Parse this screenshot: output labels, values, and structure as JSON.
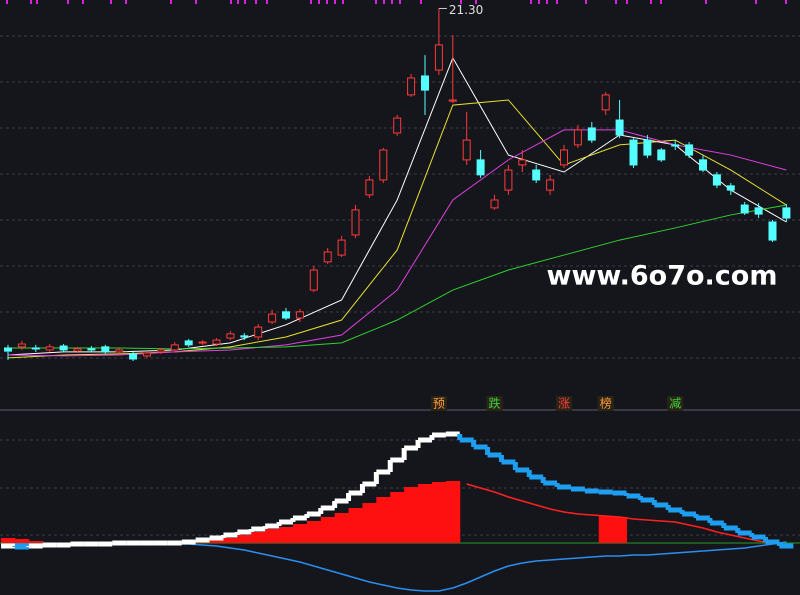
{
  "chart_data": [
    {
      "type": "candlestick",
      "ylim": [
        8.5,
        21.6
      ],
      "up_color": "#ff3a3a",
      "down_color": "#54ffff",
      "open": [
        9.28,
        9.32,
        9.28,
        9.21,
        9.35,
        9.17,
        9.25,
        9.32,
        9.14,
        9.07,
        9.0,
        9.14,
        9.21,
        9.53,
        9.46,
        9.42,
        9.63,
        9.71,
        9.67,
        10.2,
        10.56,
        10.34,
        11.33,
        12.33,
        12.57,
        13.28,
        14.7,
        15.23,
        16.89,
        18.24,
        18.91,
        19.12,
        18.02,
        15.94,
        15.94,
        14.24,
        14.87,
        15.76,
        15.58,
        14.87,
        15.76,
        16.47,
        17.07,
        17.71,
        17.35,
        16.64,
        16.64,
        16.29,
        16.47,
        16.47,
        15.94,
        15.41,
        15.02,
        14.34,
        14.24,
        13.74,
        14.24
      ],
      "close": [
        9.17,
        9.42,
        9.25,
        9.32,
        9.21,
        9.25,
        9.21,
        9.14,
        9.21,
        8.89,
        9.1,
        9.21,
        9.39,
        9.39,
        9.49,
        9.56,
        9.78,
        9.67,
        10.02,
        10.48,
        10.34,
        10.56,
        12.04,
        12.68,
        13.1,
        14.17,
        15.23,
        16.29,
        17.42,
        18.84,
        18.41,
        20.01,
        18.06,
        16.64,
        15.41,
        14.52,
        15.58,
        15.94,
        15.23,
        15.23,
        16.29,
        17.0,
        16.64,
        18.24,
        16.82,
        15.76,
        16.11,
        15.94,
        16.43,
        16.11,
        15.58,
        15.05,
        14.87,
        14.06,
        14.02,
        13.1,
        13.88
      ],
      "high": [
        9.39,
        9.53,
        9.39,
        9.42,
        9.42,
        9.32,
        9.35,
        9.39,
        9.28,
        9.14,
        9.17,
        9.28,
        9.49,
        9.6,
        9.56,
        9.63,
        9.88,
        9.81,
        10.13,
        10.63,
        10.7,
        10.66,
        12.18,
        12.82,
        13.25,
        14.34,
        15.37,
        16.36,
        17.53,
        18.98,
        19.65,
        21.3,
        20.36,
        17.64,
        16.29,
        14.7,
        15.76,
        16.29,
        15.76,
        15.41,
        16.47,
        17.18,
        17.28,
        18.34,
        18.06,
        16.71,
        16.82,
        16.36,
        16.64,
        16.57,
        16.11,
        15.51,
        15.12,
        14.45,
        14.41,
        13.81,
        14.38
      ],
      "low": [
        8.86,
        9.21,
        9.14,
        9.14,
        9.14,
        9.1,
        9.14,
        9.07,
        9.07,
        8.82,
        8.93,
        9.07,
        9.14,
        9.32,
        9.39,
        9.35,
        9.56,
        9.56,
        9.56,
        10.13,
        10.27,
        10.2,
        11.26,
        12.25,
        12.5,
        13.17,
        14.59,
        15.12,
        16.79,
        18.17,
        17.53,
        18.95,
        17.95,
        15.76,
        15.3,
        14.17,
        14.7,
        15.51,
        15.12,
        14.7,
        15.65,
        16.36,
        16.54,
        17.53,
        16.71,
        15.65,
        16.0,
        15.87,
        16.29,
        16.01,
        15.51,
        14.94,
        14.7,
        13.99,
        13.88,
        13.03,
        13.74
      ],
      "ma": [
        {
          "color": "#ffffff",
          "x": [
            0,
            4,
            8,
            12,
            16,
            20,
            24,
            28,
            32,
            36,
            40,
            44,
            48,
            52,
            56
          ],
          "values": [
            9.03,
            9.14,
            9.14,
            9.21,
            9.46,
            10.1,
            10.98,
            14.52,
            19.55,
            16.11,
            15.51,
            16.82,
            16.47,
            14.87,
            13.74
          ]
        },
        {
          "color": "#e8e030",
          "x": [
            0,
            4,
            8,
            12,
            16,
            20,
            24,
            28,
            32,
            36,
            40,
            44,
            48,
            52,
            56
          ],
          "values": [
            8.93,
            9.03,
            9.07,
            9.14,
            9.32,
            9.67,
            10.27,
            12.75,
            17.88,
            18.06,
            15.76,
            16.47,
            16.64,
            15.58,
            14.34
          ]
        },
        {
          "color": "#e040e0",
          "x": [
            0,
            4,
            8,
            12,
            16,
            20,
            24,
            28,
            32,
            36,
            40,
            44,
            48,
            52,
            56
          ],
          "values": [
            9.03,
            9.0,
            9.03,
            9.14,
            9.21,
            9.39,
            9.74,
            11.33,
            14.52,
            15.94,
            17.0,
            17.0,
            16.47,
            16.11,
            15.58
          ]
        },
        {
          "color": "#30d030",
          "x": [
            0,
            4,
            8,
            12,
            16,
            20,
            24,
            28,
            32,
            36,
            40,
            44,
            48,
            52,
            56
          ],
          "values": [
            9.28,
            9.28,
            9.28,
            9.25,
            9.28,
            9.32,
            9.46,
            10.27,
            11.33,
            12.04,
            12.57,
            13.1,
            13.53,
            13.99,
            14.34
          ]
        }
      ],
      "high_label": "21.30",
      "watermark": "www.6o7o.com",
      "signals": [
        null,
        null,
        null,
        null,
        null,
        null,
        null,
        null,
        null,
        null,
        null,
        null,
        null,
        null,
        null,
        null,
        null,
        null,
        null,
        null,
        null,
        null,
        null,
        null,
        null,
        null,
        null,
        null,
        null,
        null,
        null,
        {
          "text": "预",
          "color": "#ff9a3a"
        },
        null,
        null,
        null,
        {
          "text": "跌",
          "color": "#3ad23a"
        },
        null,
        null,
        null,
        null,
        {
          "text": "涨",
          "color": "#ff3a3a"
        },
        null,
        null,
        {
          "text": "榜",
          "color": "#ff9a3a"
        },
        null,
        null,
        null,
        null,
        {
          "text": "减",
          "color": "#3ad23a"
        },
        null,
        null,
        null,
        null,
        null,
        null,
        null,
        null
      ]
    },
    {
      "type": "indicator",
      "ylim": [
        -52,
        128
      ],
      "stair": {
        "up_color": "#ffffff",
        "down_color": "#1e9ef0",
        "values": [
          -3,
          -4,
          -3,
          -2,
          -2,
          -1,
          -1,
          -1,
          0,
          0,
          0,
          0,
          0,
          1,
          3,
          5,
          8,
          11,
          14,
          17,
          21,
          25,
          29,
          35,
          42,
          50,
          59,
          71,
          83,
          95,
          103,
          108,
          109,
          103,
          96,
          88,
          81,
          73,
          66,
          60,
          56,
          54,
          52,
          51,
          50,
          47,
          43,
          38,
          33,
          29,
          25,
          20,
          15,
          10,
          6,
          1,
          -3
        ]
      },
      "hist": {
        "color": "#ff1010",
        "values": [
          5,
          4,
          2,
          null,
          null,
          null,
          null,
          null,
          null,
          null,
          null,
          null,
          null,
          null,
          2,
          3,
          5,
          8,
          11,
          14,
          16,
          19,
          22,
          26,
          30,
          35,
          40,
          46,
          51,
          56,
          59,
          61,
          62,
          null,
          null,
          null,
          null,
          null,
          null,
          null,
          null,
          null,
          null,
          27,
          26,
          null,
          null,
          null,
          null,
          null,
          null,
          null,
          null,
          null,
          null,
          null,
          null
        ]
      },
      "line": {
        "color": "#ff2020",
        "values": [
          null,
          null,
          null,
          null,
          null,
          null,
          null,
          null,
          null,
          null,
          null,
          null,
          null,
          null,
          null,
          null,
          null,
          null,
          null,
          null,
          null,
          null,
          null,
          null,
          null,
          null,
          null,
          null,
          null,
          null,
          null,
          null,
          null,
          59,
          55,
          51,
          46,
          42,
          38,
          34,
          31,
          29,
          28,
          27,
          26,
          24,
          23,
          22,
          21,
          18,
          15,
          11,
          8,
          5,
          2,
          0,
          -2
        ]
      },
      "signal_line": {
        "color": "#2a8ef0",
        "values": [
          -1,
          -1,
          -1,
          -1,
          -1,
          -1,
          -1,
          -1,
          -1,
          -1,
          -1,
          -1,
          -1,
          -1,
          -2,
          -3,
          -5,
          -7,
          -10,
          -13,
          -16,
          -19,
          -23,
          -27,
          -31,
          -35,
          -39,
          -42,
          -45,
          -47,
          -48,
          -48,
          -45,
          -40,
          -34,
          -28,
          -23,
          -20,
          -18,
          -17,
          -16,
          -15,
          -14,
          -13,
          -13,
          -12,
          -12,
          -11,
          -10,
          -9,
          -8,
          -7,
          -6,
          -5,
          -3,
          -1,
          1
        ]
      }
    }
  ]
}
